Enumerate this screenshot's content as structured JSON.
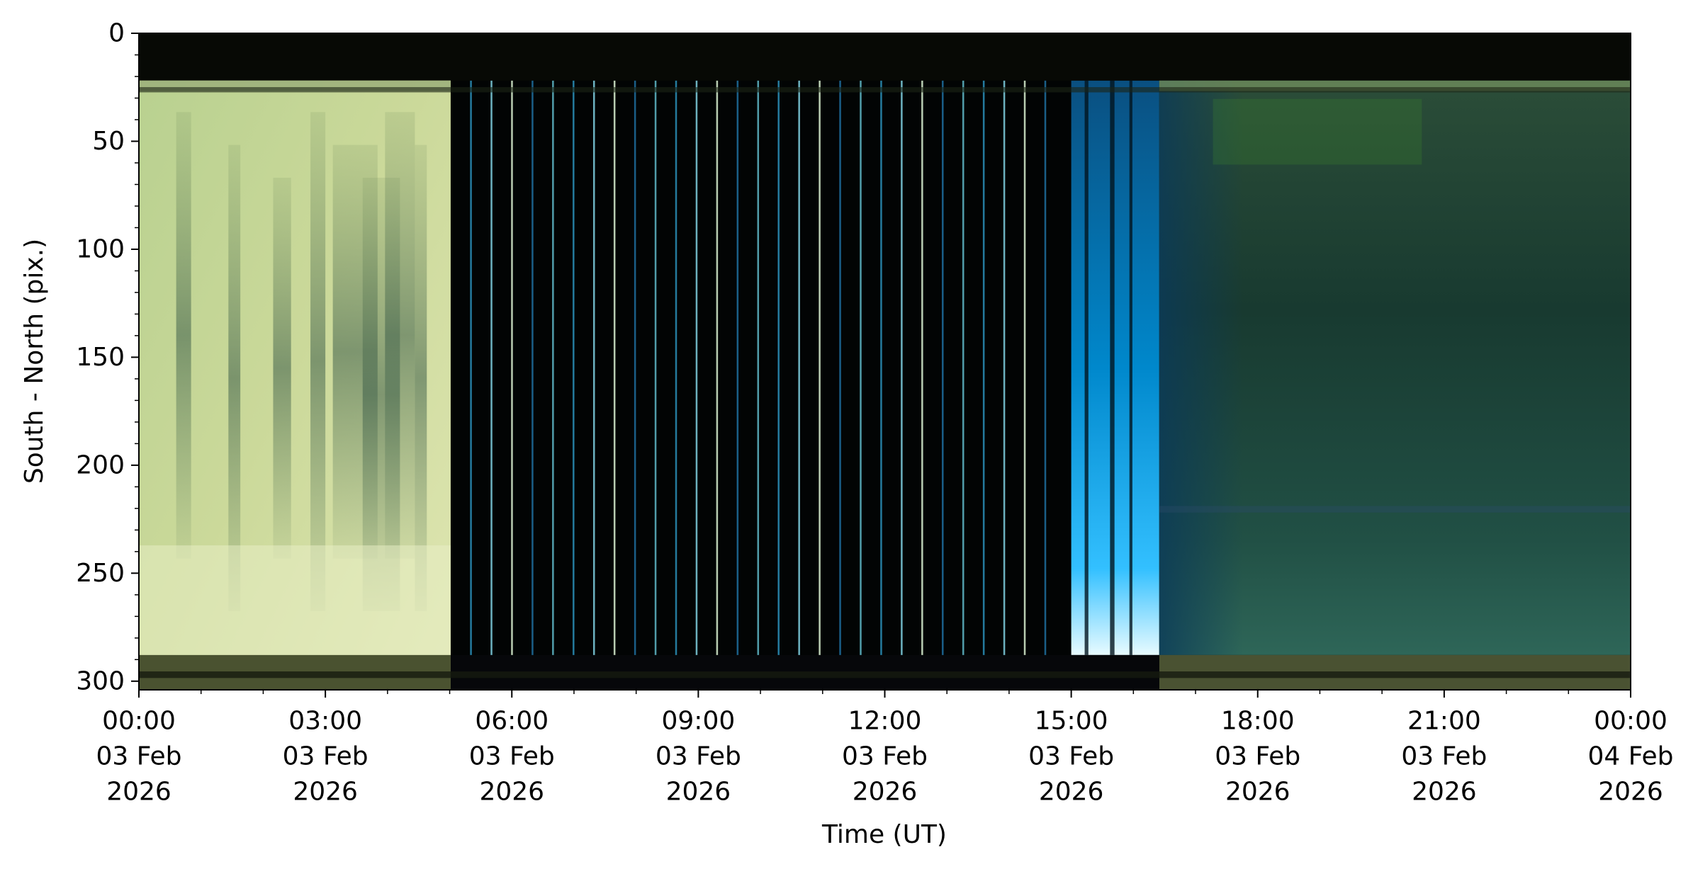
{
  "chart_data": {
    "type": "keogram",
    "xlabel": "Time (UT)",
    "ylabel": "South - North (pix.)",
    "xlim": [
      "2026-02-03T00:00",
      "2026-02-04T00:00"
    ],
    "xticks": [
      {
        "value": "2026-02-03T00:00",
        "label": [
          "00:00",
          "03 Feb",
          "2026"
        ]
      },
      {
        "value": "2026-02-03T03:00",
        "label": [
          "03:00",
          "03 Feb",
          "2026"
        ]
      },
      {
        "value": "2026-02-03T06:00",
        "label": [
          "06:00",
          "03 Feb",
          "2026"
        ]
      },
      {
        "value": "2026-02-03T09:00",
        "label": [
          "09:00",
          "03 Feb",
          "2026"
        ]
      },
      {
        "value": "2026-02-03T12:00",
        "label": [
          "12:00",
          "03 Feb",
          "2026"
        ]
      },
      {
        "value": "2026-02-03T15:00",
        "label": [
          "15:00",
          "03 Feb",
          "2026"
        ]
      },
      {
        "value": "2026-02-03T18:00",
        "label": [
          "18:00",
          "03 Feb",
          "2026"
        ]
      },
      {
        "value": "2026-02-03T21:00",
        "label": [
          "21:00",
          "03 Feb",
          "2026"
        ]
      },
      {
        "value": "2026-02-04T00:00",
        "label": [
          "00:00",
          "04 Feb",
          "2026"
        ]
      }
    ],
    "xminorticks": [
      "2026-02-03T01:00",
      "2026-02-03T02:00",
      "2026-02-03T04:00",
      "2026-02-03T05:00",
      "2026-02-03T07:00",
      "2026-02-03T08:00",
      "2026-02-03T10:00",
      "2026-02-03T11:00",
      "2026-02-03T13:00",
      "2026-02-03T14:00",
      "2026-02-03T16:00",
      "2026-02-03T17:00",
      "2026-02-03T19:00",
      "2026-02-03T20:00",
      "2026-02-03T22:00",
      "2026-02-03T23:00"
    ],
    "ylim": [
      0,
      304
    ],
    "yinverted": true,
    "yticks": [
      0,
      50,
      100,
      150,
      200,
      250,
      300
    ],
    "yminorticks": [
      10,
      20,
      30,
      40,
      60,
      70,
      80,
      90,
      110,
      120,
      130,
      140,
      160,
      170,
      180,
      190,
      210,
      220,
      230,
      240,
      260,
      270,
      280,
      290
    ]
  }
}
